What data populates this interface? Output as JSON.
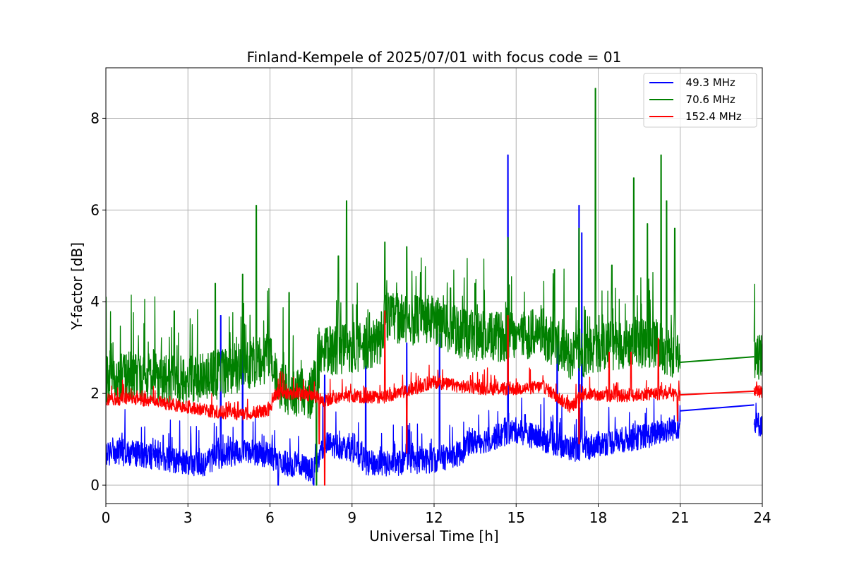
{
  "chart_data": {
    "type": "line",
    "title": "Finland-Kempele of 2025/07/01 with focus code = 01",
    "xlabel": "Universal Time [h]",
    "ylabel": "Y-factor [dB]",
    "xlim": [
      0,
      24
    ],
    "ylim": [
      -0.4,
      9.1
    ],
    "xticks": [
      0,
      3,
      6,
      9,
      12,
      15,
      18,
      21,
      24
    ],
    "xtick_labels": [
      "0",
      "3",
      "6",
      "9",
      "12",
      "15",
      "18",
      "21",
      "24"
    ],
    "yticks": [
      0,
      2,
      4,
      6,
      8
    ],
    "ytick_labels": [
      "0",
      "2",
      "4",
      "6",
      "8"
    ],
    "grid": true,
    "legend_position": "top-right",
    "data_gap": [
      21.0,
      23.7
    ],
    "series": [
      {
        "name": "49.3 MHz",
        "legend_label": "  49.3 MHz",
        "color": "#0000ff",
        "baseline": [
          [
            0,
            0.7
          ],
          [
            1,
            0.7
          ],
          [
            2,
            0.6
          ],
          [
            3,
            0.5
          ],
          [
            3.5,
            0.45
          ],
          [
            4,
            0.6
          ],
          [
            5,
            0.75
          ],
          [
            6,
            0.65
          ],
          [
            6.3,
            0.5
          ],
          [
            7,
            0.45
          ],
          [
            7.6,
            0.3
          ],
          [
            8,
            0.9
          ],
          [
            9,
            0.8
          ],
          [
            9.5,
            0.5
          ],
          [
            10,
            0.45
          ],
          [
            11,
            0.5
          ],
          [
            12,
            0.55
          ],
          [
            13,
            0.7
          ],
          [
            13.2,
            0.9
          ],
          [
            14,
            1.0
          ],
          [
            15,
            1.2
          ],
          [
            16,
            1.0
          ],
          [
            17,
            0.8
          ],
          [
            17.5,
            0.8
          ],
          [
            18,
            0.9
          ],
          [
            19,
            1.0
          ],
          [
            20,
            1.1
          ],
          [
            21,
            1.3
          ],
          [
            23.7,
            1.3
          ],
          [
            24,
            1.35
          ]
        ],
        "noise": 0.28,
        "peaks": [
          [
            4.2,
            3.7
          ],
          [
            5,
            3.5
          ],
          [
            8,
            2.4
          ],
          [
            9.5,
            2.6
          ],
          [
            11,
            3.1
          ],
          [
            12.2,
            3.3
          ],
          [
            14.7,
            7.2
          ],
          [
            16.5,
            3.2
          ],
          [
            17.3,
            6.1
          ],
          [
            17.4,
            5.5
          ]
        ],
        "dips": [
          [
            6.3,
            0.0
          ],
          [
            7.6,
            0.0
          ]
        ]
      },
      {
        "name": "70.6 MHz",
        "legend_label": "  70.6 MHz",
        "color": "#008000",
        "baseline": [
          [
            0,
            2.3
          ],
          [
            1,
            2.4
          ],
          [
            2,
            2.3
          ],
          [
            3,
            2.3
          ],
          [
            4,
            2.4
          ],
          [
            5,
            2.6
          ],
          [
            6,
            2.8
          ],
          [
            6.3,
            2.1
          ],
          [
            7.5,
            2.0
          ],
          [
            8,
            2.9
          ],
          [
            9,
            3.0
          ],
          [
            10,
            3.1
          ],
          [
            10.2,
            3.7
          ],
          [
            11,
            3.6
          ],
          [
            12,
            3.6
          ],
          [
            13,
            3.3
          ],
          [
            14,
            3.2
          ],
          [
            15,
            3.3
          ],
          [
            16,
            3.3
          ],
          [
            17,
            2.8
          ],
          [
            18,
            3.0
          ],
          [
            19,
            3.1
          ],
          [
            20,
            3.1
          ],
          [
            21,
            2.8
          ],
          [
            23.7,
            2.8
          ],
          [
            24,
            2.9
          ]
        ],
        "noise": 0.55,
        "peaks": [
          [
            0,
            4.1
          ],
          [
            2.5,
            3.8
          ],
          [
            4,
            4.4
          ],
          [
            5,
            4.6
          ],
          [
            5.5,
            6.1
          ],
          [
            6.7,
            4.2
          ],
          [
            8.5,
            5.0
          ],
          [
            8.8,
            6.2
          ],
          [
            10.2,
            5.3
          ],
          [
            11,
            5.2
          ],
          [
            12.6,
            4.3
          ],
          [
            13.5,
            4.4
          ],
          [
            14.7,
            5.4
          ],
          [
            16.4,
            4.7
          ],
          [
            17.3,
            5.6
          ],
          [
            17.9,
            8.65
          ],
          [
            18.5,
            4.8
          ],
          [
            19.3,
            6.7
          ],
          [
            19.8,
            5.7
          ],
          [
            20.3,
            7.2
          ],
          [
            20.5,
            6.2
          ],
          [
            20.8,
            5.6
          ]
        ],
        "dips": [
          [
            7.7,
            0.0
          ]
        ],
        "gap_line": [
          [
            21,
            2.68
          ],
          [
            23.7,
            2.8
          ]
        ]
      },
      {
        "name": "152.4 MHz",
        "legend_label": "152.4 MHz",
        "color": "#ff0000",
        "baseline": [
          [
            0,
            1.85
          ],
          [
            1,
            1.9
          ],
          [
            2,
            1.8
          ],
          [
            3,
            1.7
          ],
          [
            4,
            1.6
          ],
          [
            5,
            1.55
          ],
          [
            6,
            1.65
          ],
          [
            6.2,
            2.0
          ],
          [
            7,
            2.0
          ],
          [
            8,
            1.85
          ],
          [
            9,
            1.95
          ],
          [
            10,
            1.9
          ],
          [
            11,
            2.05
          ],
          [
            12,
            2.25
          ],
          [
            13,
            2.15
          ],
          [
            14,
            2.1
          ],
          [
            15,
            2.1
          ],
          [
            16,
            2.15
          ],
          [
            17,
            1.7
          ],
          [
            17.5,
            2.0
          ],
          [
            18,
            1.95
          ],
          [
            19,
            1.95
          ],
          [
            20,
            2.0
          ],
          [
            21,
            1.95
          ],
          [
            23.7,
            2.05
          ],
          [
            24,
            2.05
          ]
        ],
        "noise": 0.14,
        "peaks": [
          [
            10.2,
            3.8
          ],
          [
            14.7,
            3.7
          ],
          [
            17.3,
            3.4
          ],
          [
            18.4,
            2.9
          ],
          [
            19.2,
            2.9
          ],
          [
            20.2,
            3.2
          ]
        ],
        "dips": [
          [
            7.8,
            0.9
          ],
          [
            8.0,
            0.0
          ],
          [
            11,
            0.7
          ],
          [
            17.3,
            0.9
          ],
          [
            20.9,
            1.4
          ]
        ],
        "gap_line": [
          [
            21,
            1.97
          ],
          [
            23.7,
            2.05
          ]
        ]
      }
    ],
    "extra_gap_line": {
      "series": "49.3 MHz",
      "points": [
        [
          21,
          1.62
        ],
        [
          23.7,
          1.75
        ]
      ]
    }
  }
}
